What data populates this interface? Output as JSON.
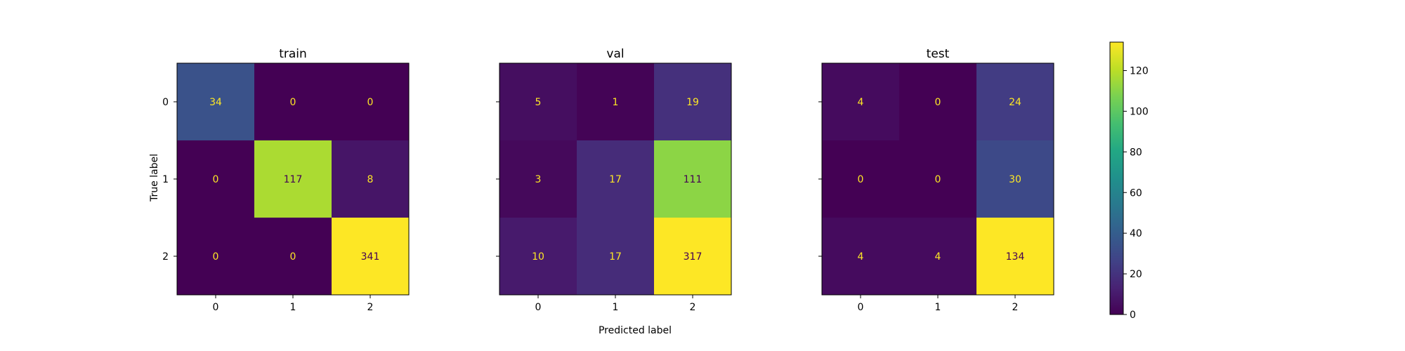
{
  "chart_data": {
    "type": "heatmap",
    "colormap": "viridis",
    "xlabel": "Predicted label",
    "ylabel": "True label",
    "class_labels": [
      "0",
      "1",
      "2"
    ],
    "colorbar": {
      "min": 0,
      "max": 134,
      "ticks": [
        0,
        20,
        40,
        60,
        80,
        100,
        120
      ]
    },
    "panels": [
      {
        "title": "train",
        "matrix": [
          [
            34,
            0,
            0
          ],
          [
            0,
            117,
            8
          ],
          [
            0,
            0,
            341
          ]
        ]
      },
      {
        "title": "val",
        "matrix": [
          [
            5,
            1,
            19
          ],
          [
            3,
            17,
            111
          ],
          [
            10,
            17,
            317
          ]
        ]
      },
      {
        "title": "test",
        "matrix": [
          [
            4,
            0,
            24
          ],
          [
            0,
            0,
            30
          ],
          [
            4,
            4,
            134
          ]
        ]
      }
    ],
    "colors": {
      "text_on_dark": "#fde725",
      "text_on_light": "#440154"
    }
  }
}
